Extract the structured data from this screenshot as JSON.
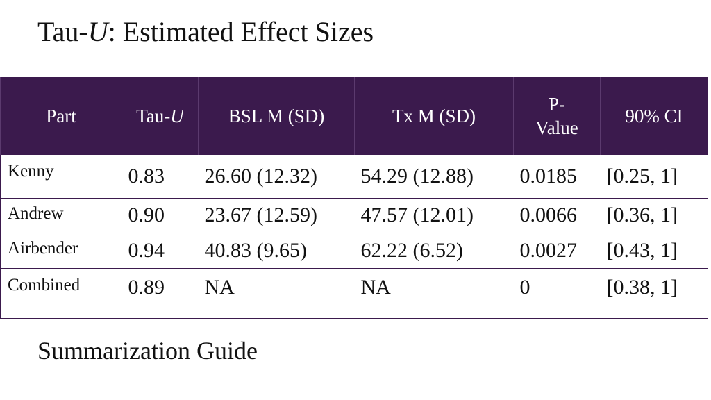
{
  "slide": {
    "title_prefix": "Tau-",
    "title_italic": "U",
    "title_suffix": ": Estimated Effect Sizes",
    "guide_heading": "Summarization Guide"
  },
  "table": {
    "headers": {
      "part": "Part",
      "tau_prefix": "Tau-",
      "tau_italic": "U",
      "bsl": "BSL M (SD)",
      "tx": "Tx M (SD)",
      "p_line1": "P-",
      "p_line2": "Value",
      "ci": "90% CI"
    },
    "rows": [
      {
        "part": "Kenny",
        "tau": "0.83",
        "bsl": "26.60 (12.32)",
        "tx": "54.29 (12.88)",
        "p": "0.0185",
        "ci": "[0.25, 1]"
      },
      {
        "part": "Andrew",
        "tau": "0.90",
        "bsl": "23.67 (12.59)",
        "tx": "47.57 (12.01)",
        "p": "0.0066",
        "ci": "[0.36, 1]"
      },
      {
        "part": "Airbender",
        "tau": "0.94",
        "bsl": "40.83 (9.65)",
        "tx": "62.22 (6.52)",
        "p": "0.0027",
        "ci": "[0.43, 1]"
      },
      {
        "part": "Combined",
        "tau": "0.89",
        "bsl": "NA",
        "tx": "NA",
        "p": "0",
        "ci": "[0.38, 1]"
      }
    ]
  },
  "colors": {
    "header_background": "#3b1a4d",
    "header_text": "#ffffff",
    "body_text": "#111111"
  }
}
